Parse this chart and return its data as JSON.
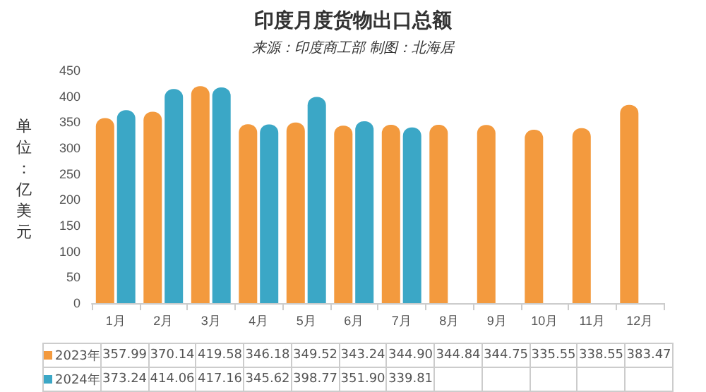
{
  "chart_data": {
    "type": "bar",
    "title": "印度月度货物出口总额",
    "subtitle": "来源：印度商工部 制图：北海居",
    "ylabel": "单位：亿美元",
    "categories": [
      "1月",
      "2月",
      "3月",
      "4月",
      "5月",
      "6月",
      "7月",
      "8月",
      "9月",
      "10月",
      "11月",
      "12月"
    ],
    "series": [
      {
        "name": "2023年",
        "color": "#f39a3e",
        "values": [
          357.99,
          370.14,
          419.58,
          346.18,
          349.52,
          343.24,
          344.9,
          344.84,
          344.75,
          335.55,
          338.55,
          383.47
        ],
        "value_labels": [
          "357.99",
          "370.14",
          "419.58",
          "346.18",
          "349.52",
          "343.24",
          "344.90",
          "344.84",
          "344.75",
          "335.55",
          "338.55",
          "383.47"
        ]
      },
      {
        "name": "2024年",
        "color": "#3ba7c6",
        "values": [
          373.24,
          414.06,
          417.16,
          345.62,
          398.77,
          351.9,
          339.81,
          null,
          null,
          null,
          null,
          null
        ],
        "value_labels": [
          "373.24",
          "414.06",
          "417.16",
          "345.62",
          "398.77",
          "351.90",
          "339.81",
          null,
          null,
          null,
          null,
          null
        ]
      }
    ],
    "ylim": [
      0,
      450
    ],
    "yticks": [
      0,
      50,
      100,
      150,
      200,
      250,
      300,
      350,
      400,
      450
    ],
    "grid": false,
    "legend": "bottom"
  }
}
